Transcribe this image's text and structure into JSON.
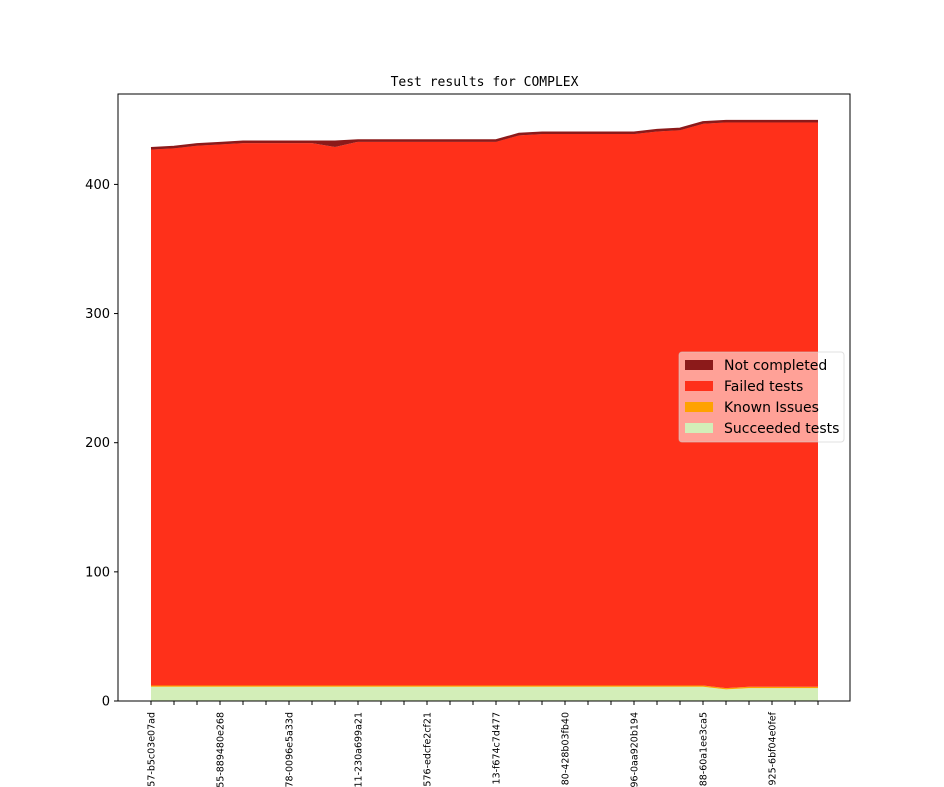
{
  "chart_data": {
    "type": "area",
    "stacked": true,
    "title": "Test results for COMPLEX",
    "xlabel": "",
    "ylabel": "",
    "ylim": [
      0,
      470
    ],
    "y_ticks": [
      0,
      100,
      200,
      300,
      400
    ],
    "grid": false,
    "legend_position": "right",
    "x_tick_labels": [
      "57-b5c03e07ad",
      "",
      "",
      "55-889480e268",
      "",
      "",
      "78-0096e5a33d",
      "",
      "",
      "11-230a699a21",
      "",
      "",
      "576-edcfe2cf21",
      "",
      "",
      "13-f674c7d477",
      "",
      "",
      "80-428b03fb40",
      "",
      "",
      "96-0aa920b194",
      "",
      "",
      "88-60a1ee3ca5",
      "",
      "",
      "925-6bf04e0fef",
      "",
      ""
    ],
    "series": [
      {
        "name": "Succeeded tests",
        "color": "#d3eeb8",
        "values": [
          11,
          11,
          11,
          11,
          11,
          11,
          11,
          11,
          11,
          11,
          11,
          11,
          11,
          11,
          11,
          11,
          11,
          11,
          11,
          11,
          11,
          11,
          11,
          11,
          11,
          9,
          10,
          10,
          10,
          10
        ]
      },
      {
        "name": "Known Issues",
        "color": "#ffa200",
        "values": [
          1,
          1,
          1,
          1,
          1,
          1,
          1,
          1,
          1,
          1,
          1,
          1,
          1,
          1,
          1,
          1,
          1,
          1,
          1,
          1,
          1,
          1,
          1,
          1,
          1,
          1,
          1,
          1,
          1,
          1
        ]
      },
      {
        "name": "Failed tests",
        "color": "#ff301a",
        "values": [
          415,
          416,
          418,
          419,
          420,
          420,
          420,
          420,
          417,
          421,
          421,
          421,
          421,
          421,
          421,
          421,
          426,
          427,
          427,
          427,
          427,
          427,
          429,
          430,
          435,
          438,
          437,
          437,
          437,
          437
        ]
      },
      {
        "name": "Not completed",
        "color": "#8c1a1a",
        "values": [
          1,
          1,
          1,
          1,
          1,
          1,
          1,
          1,
          4,
          1,
          1,
          1,
          1,
          1,
          1,
          1,
          1,
          1,
          1,
          1,
          1,
          1,
          1,
          1,
          1,
          1,
          1,
          1,
          1,
          1
        ]
      }
    ],
    "legend_order": [
      "Not completed",
      "Failed tests",
      "Known Issues",
      "Succeeded tests"
    ]
  }
}
